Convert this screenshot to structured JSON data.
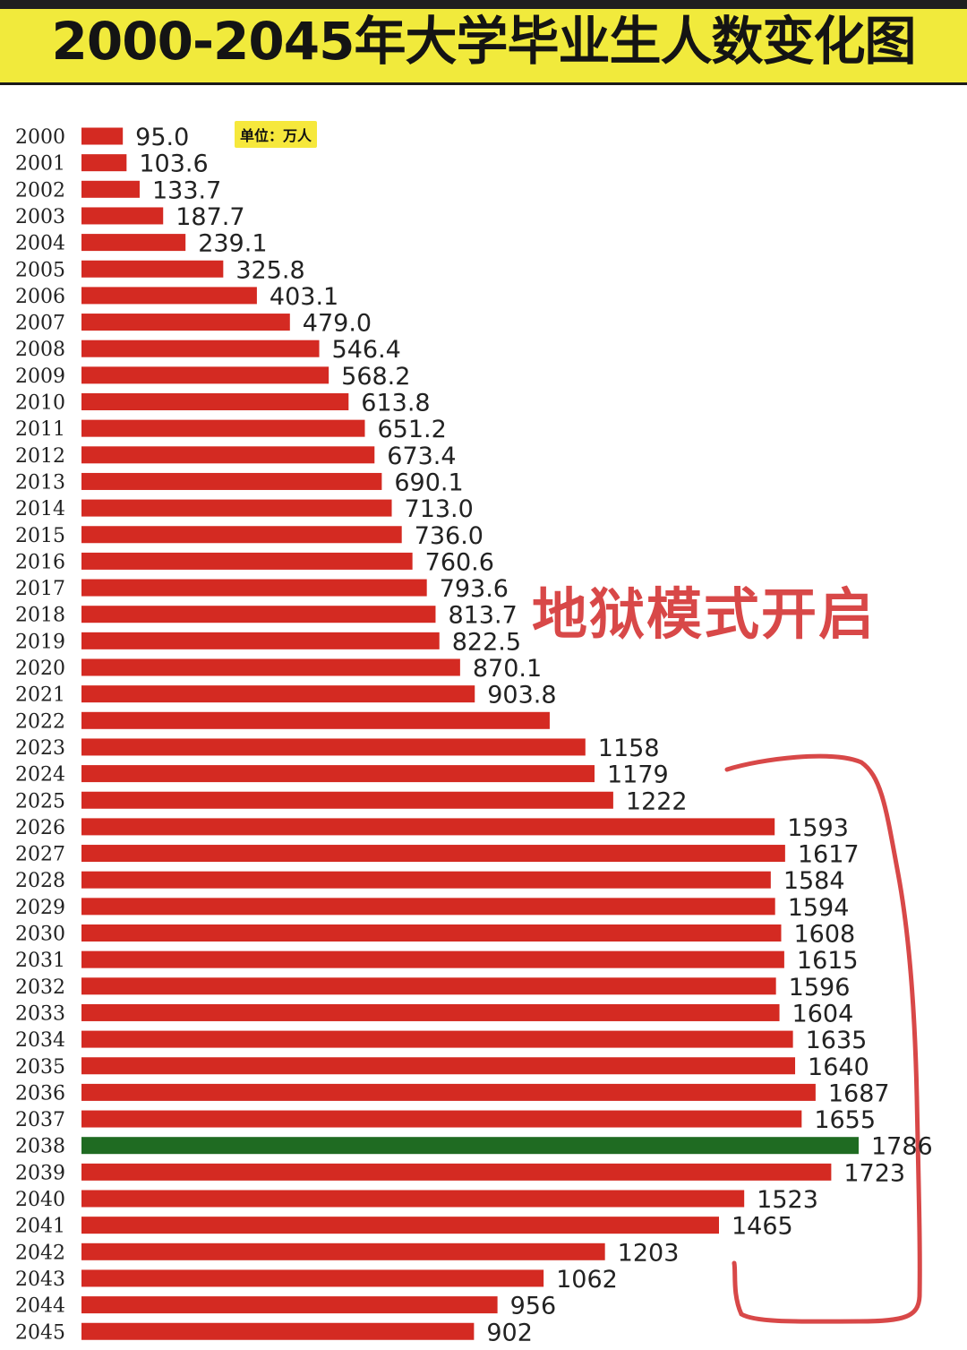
{
  "header": {
    "title": "2000-2045年大学毕业生人数变化图"
  },
  "unit_label": "单位：万人",
  "annotation": "地狱模式开启",
  "colors": {
    "bar": "#d42a22",
    "bar_highlight": "#1f6b22",
    "banner": "#f1ea3c",
    "annotation": "#d84848"
  },
  "chart_data": {
    "type": "bar",
    "orientation": "horizontal",
    "title": "2000-2045年大学毕业生人数变化图",
    "unit": "单位：万人",
    "categories": [
      "2000",
      "2001",
      "2002",
      "2003",
      "2004",
      "2005",
      "2006",
      "2007",
      "2008",
      "2009",
      "2010",
      "2011",
      "2012",
      "2013",
      "2014",
      "2015",
      "2016",
      "2017",
      "2018",
      "2019",
      "2020",
      "2021",
      "2022",
      "2023",
      "2024",
      "2025",
      "2026",
      "2027",
      "2028",
      "2029",
      "2030",
      "2031",
      "2032",
      "2033",
      "2034",
      "2035",
      "2036",
      "2037",
      "2038",
      "2039",
      "2040",
      "2041",
      "2042",
      "2043",
      "2044",
      "2045"
    ],
    "values": [
      95.0,
      103.6,
      133.7,
      187.7,
      239.1,
      325.8,
      403.1,
      479.0,
      546.4,
      568.2,
      613.8,
      651.2,
      673.4,
      690.1,
      713.0,
      736.0,
      760.6,
      793.6,
      813.7,
      822.5,
      870.1,
      903.8,
      1076,
      1158,
      1179,
      1222,
      1593,
      1617,
      1584,
      1594,
      1608,
      1615,
      1596,
      1604,
      1635,
      1640,
      1687,
      1655,
      1786,
      1723,
      1523,
      1465,
      1203,
      1062,
      956,
      902
    ],
    "value_labels": [
      "95.0",
      "103.6",
      "133.7",
      "187.7",
      "239.1",
      "325.8",
      "403.1",
      "479.0",
      "546.4",
      "568.2",
      "613.8",
      "651.2",
      "673.4",
      "690.1",
      "713.0",
      "736.0",
      "760.6",
      "793.6",
      "813.7",
      "822.5",
      "870.1",
      "903.8",
      "",
      "1158",
      "1179",
      "1222",
      "1593",
      "1617",
      "1584",
      "1594",
      "1608",
      "1615",
      "1596",
      "1604",
      "1635",
      "1640",
      "1687",
      "1655",
      "1786",
      "1723",
      "1523",
      "1465",
      "1203",
      "1062",
      "956",
      "902"
    ],
    "highlight_category": "2038",
    "xlim": [
      0,
      1786
    ],
    "grid": false,
    "legend": "none"
  }
}
